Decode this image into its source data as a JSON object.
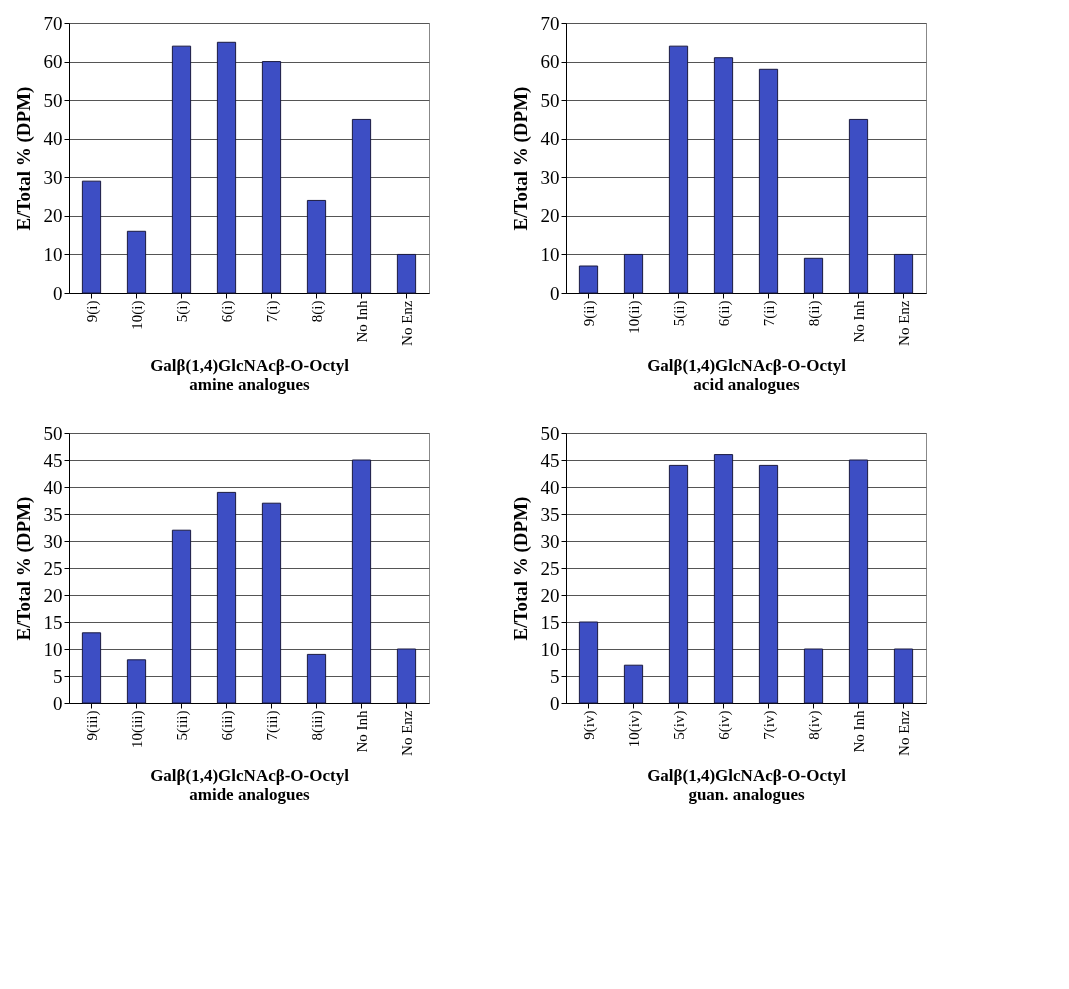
{
  "chart_data": [
    {
      "type": "bar",
      "categories": [
        "9(i)",
        "10(i)",
        "5(i)",
        "6(i)",
        "7(i)",
        "8(i)",
        "No Inh",
        "No Enz"
      ],
      "values": [
        29,
        16,
        64,
        65,
        60,
        24,
        45,
        10
      ],
      "color": "#3d4ec4",
      "ylabel": "E/Total % (DPM)",
      "xlabel": "Galβ(1,4)GlcNAcβ-O-Octyl\namine analogues",
      "ylim": [
        0,
        70
      ],
      "yticks": [
        0,
        10,
        20,
        30,
        40,
        50,
        60,
        70
      ],
      "grid": "y"
    },
    {
      "type": "bar",
      "categories": [
        "9(ii)",
        "10(ii)",
        "5(ii)",
        "6(ii)",
        "7(ii)",
        "8(ii)",
        "No Inh",
        "No Enz"
      ],
      "values": [
        7,
        10,
        64,
        61,
        58,
        9,
        45,
        10
      ],
      "color": "#3d4ec4",
      "ylabel": "E/Total % (DPM)",
      "xlabel": "Galβ(1,4)GlcNAcβ-O-Octyl\nacid analogues",
      "ylim": [
        0,
        70
      ],
      "yticks": [
        0,
        10,
        20,
        30,
        40,
        50,
        60,
        70
      ],
      "grid": "y"
    },
    {
      "type": "bar",
      "categories": [
        "9(iii)",
        "10(iii)",
        "5(iii)",
        "6(iii)",
        "7(iii)",
        "8(iii)",
        "No Inh",
        "No Enz"
      ],
      "values": [
        13,
        8,
        32,
        39,
        37,
        9,
        45,
        10
      ],
      "color": "#3d4ec4",
      "ylabel": "E/Total % (DPM)",
      "xlabel": "Galβ(1,4)GlcNAcβ-O-Octyl\namide analogues",
      "ylim": [
        0,
        50
      ],
      "yticks": [
        0,
        5,
        10,
        15,
        20,
        25,
        30,
        35,
        40,
        45,
        50
      ],
      "grid": "y"
    },
    {
      "type": "bar",
      "categories": [
        "9(iv)",
        "10(iv)",
        "5(iv)",
        "6(iv)",
        "7(iv)",
        "8(iv)",
        "No Inh",
        "No Enz"
      ],
      "values": [
        15,
        7,
        44,
        46,
        44,
        10,
        45,
        10
      ],
      "color": "#3d4ec4",
      "ylabel": "E/Total % (DPM)",
      "xlabel": "Galβ(1,4)GlcNAcβ-O-Octyl\nguan. analogues",
      "ylim": [
        0,
        50
      ],
      "yticks": [
        0,
        5,
        10,
        15,
        20,
        25,
        30,
        35,
        40,
        45,
        50
      ],
      "grid": "y"
    }
  ]
}
